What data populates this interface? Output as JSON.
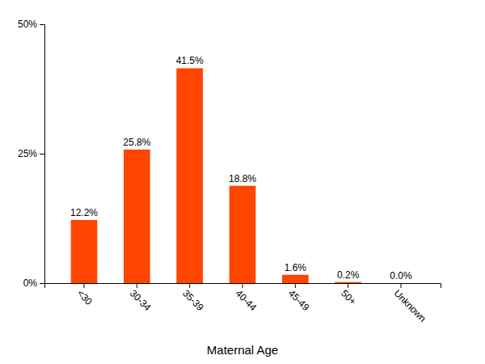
{
  "chart_data": {
    "type": "bar",
    "categories": [
      "<30",
      "30-34",
      "35-39",
      "40-44",
      "45-49",
      "50+",
      "Unknown"
    ],
    "values": [
      12.2,
      25.8,
      41.5,
      18.8,
      1.6,
      0.2,
      0.0
    ],
    "value_labels": [
      "12.2%",
      "25.8%",
      "41.5%",
      "18.8%",
      "1.6%",
      "0.2%",
      "0.0%"
    ],
    "data_labels": true,
    "color": "#FF4500",
    "xlabel": "Maternal Age",
    "ylim": [
      0,
      50
    ],
    "yticks": [
      {
        "value": 0,
        "label": "0%"
      },
      {
        "value": 25,
        "label": "25%"
      },
      {
        "value": 50,
        "label": "50%"
      }
    ],
    "grid": false
  }
}
